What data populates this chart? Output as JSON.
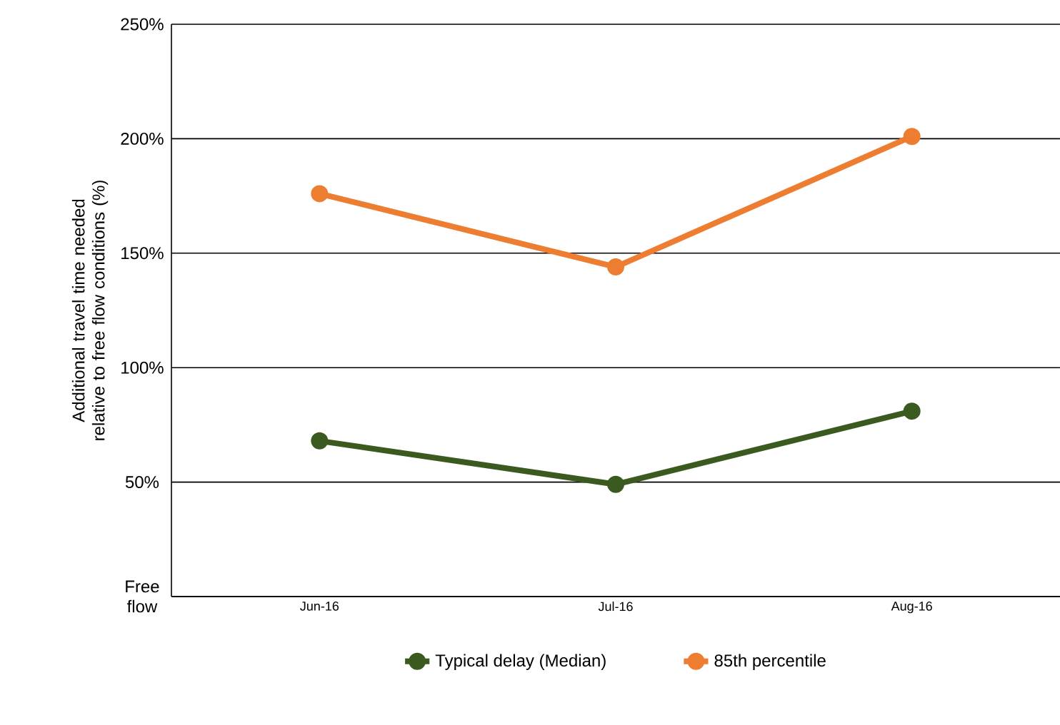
{
  "chart_data": {
    "type": "line",
    "ylabel": "Additional travel time needed relative to free flow conditions (%)",
    "categories": [
      "Jun-16",
      "Jul-16",
      "Aug-16"
    ],
    "series": [
      {
        "name": "Typical delay (Median)",
        "color": "#3a5a1f",
        "values": [
          68,
          49,
          81
        ]
      },
      {
        "name": "85th percentile",
        "color": "#ed7d31",
        "values": [
          176,
          144,
          201
        ]
      }
    ],
    "ylim": [
      0,
      250
    ],
    "yticks": [
      {
        "value": 0,
        "label": "Free flow"
      },
      {
        "value": 50,
        "label": "50%"
      },
      {
        "value": 100,
        "label": "100%"
      },
      {
        "value": 150,
        "label": "150%"
      },
      {
        "value": 200,
        "label": "200%"
      },
      {
        "value": 250,
        "label": "250%"
      }
    ],
    "grid": "y",
    "legend": "bottom",
    "marker": "circle",
    "line_style": "solid"
  }
}
